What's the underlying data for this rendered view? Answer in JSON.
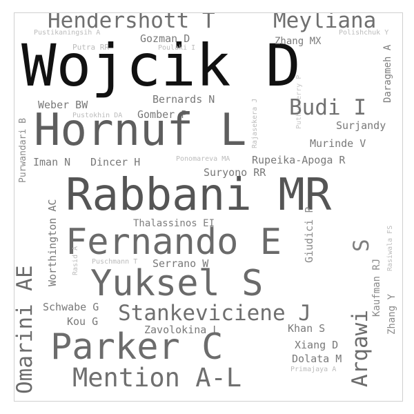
{
  "wordcloud": {
    "words": [
      {
        "text": "Wojcik D",
        "color": "#111111"
      },
      {
        "text": "Hendershott T",
        "color": "#6f6f6f"
      },
      {
        "text": "Meyliana",
        "color": "#6f6f6f"
      },
      {
        "text": "Pustikaningsih A",
        "color": "#bbbbbb"
      },
      {
        "text": "Gozman D",
        "color": "#7a7a7a"
      },
      {
        "text": "Zhang MX",
        "color": "#7a7a7a"
      },
      {
        "text": "Polishchuk Y",
        "color": "#bbbbbb"
      },
      {
        "text": "Putra RR",
        "color": "#bbbbbb"
      },
      {
        "text": "Poulaki I",
        "color": "#bbbbbb"
      },
      {
        "text": "Daragmeh A",
        "color": "#7d7d7d"
      },
      {
        "text": "Puthusserry P",
        "color": "#c7c7c7"
      },
      {
        "text": "Bernards N",
        "color": "#787878"
      },
      {
        "text": "Weber BW",
        "color": "#787878"
      },
      {
        "text": "Budi I",
        "color": "#707070"
      },
      {
        "text": "Purwandari B",
        "color": "#8a8a8a"
      },
      {
        "text": "Pustokhin DA",
        "color": "#bbbbbb"
      },
      {
        "text": "Gomber P",
        "color": "#787878"
      },
      {
        "text": "Rajasekera J",
        "color": "#bbbbbb"
      },
      {
        "text": "Surjandy",
        "color": "#787878"
      },
      {
        "text": "Hornuf L",
        "color": "#5e5e5e"
      },
      {
        "text": "Murinde V",
        "color": "#787878"
      },
      {
        "text": "Iman N",
        "color": "#787878"
      },
      {
        "text": "Dincer H",
        "color": "#787878"
      },
      {
        "text": "Ponomareva MA",
        "color": "#bbbbbb"
      },
      {
        "text": "Rupeika-Apoga R",
        "color": "#787878"
      },
      {
        "text": "Suryono RR",
        "color": "#787878"
      },
      {
        "text": "Rabbani MR",
        "color": "#555555"
      },
      {
        "text": "Worthington AC",
        "color": "#787878"
      },
      {
        "text": "Giudici P",
        "color": "#8a8a8a"
      },
      {
        "text": "Omarini AE",
        "color": "#6c6c6c"
      },
      {
        "text": "Thalassinos EI",
        "color": "#7d7d7d"
      },
      {
        "text": "Fernando E",
        "color": "#6a6a6a"
      },
      {
        "text": "S",
        "color": "#7d7d7d"
      },
      {
        "text": "Rasid A",
        "color": "#bbbbbb"
      },
      {
        "text": "Puschmann T",
        "color": "#bbbbbb"
      },
      {
        "text": "Serrano W",
        "color": "#787878"
      },
      {
        "text": "Rasiwala FS",
        "color": "#bbbbbb"
      },
      {
        "text": "Arqawi",
        "color": "#6c6c6c"
      },
      {
        "text": "Yuksel S",
        "color": "#6a6a6a"
      },
      {
        "text": "Kaufman RJ",
        "color": "#8a8a8a"
      },
      {
        "text": "Zhang Y",
        "color": "#8a8a8a"
      },
      {
        "text": "Schwabe G",
        "color": "#787878"
      },
      {
        "text": "Stankeviciene J",
        "color": "#6f6f6f"
      },
      {
        "text": "Kou G",
        "color": "#787878"
      },
      {
        "text": "Zavolokina L",
        "color": "#787878"
      },
      {
        "text": "Khan S",
        "color": "#787878"
      },
      {
        "text": "Parker C",
        "color": "#6c6c6c"
      },
      {
        "text": "Xiang D",
        "color": "#787878"
      },
      {
        "text": "Dolata M",
        "color": "#787878"
      },
      {
        "text": "Mention A-L",
        "color": "#6f6f6f"
      },
      {
        "text": "Primajaya A",
        "color": "#bbbbbb"
      }
    ]
  }
}
